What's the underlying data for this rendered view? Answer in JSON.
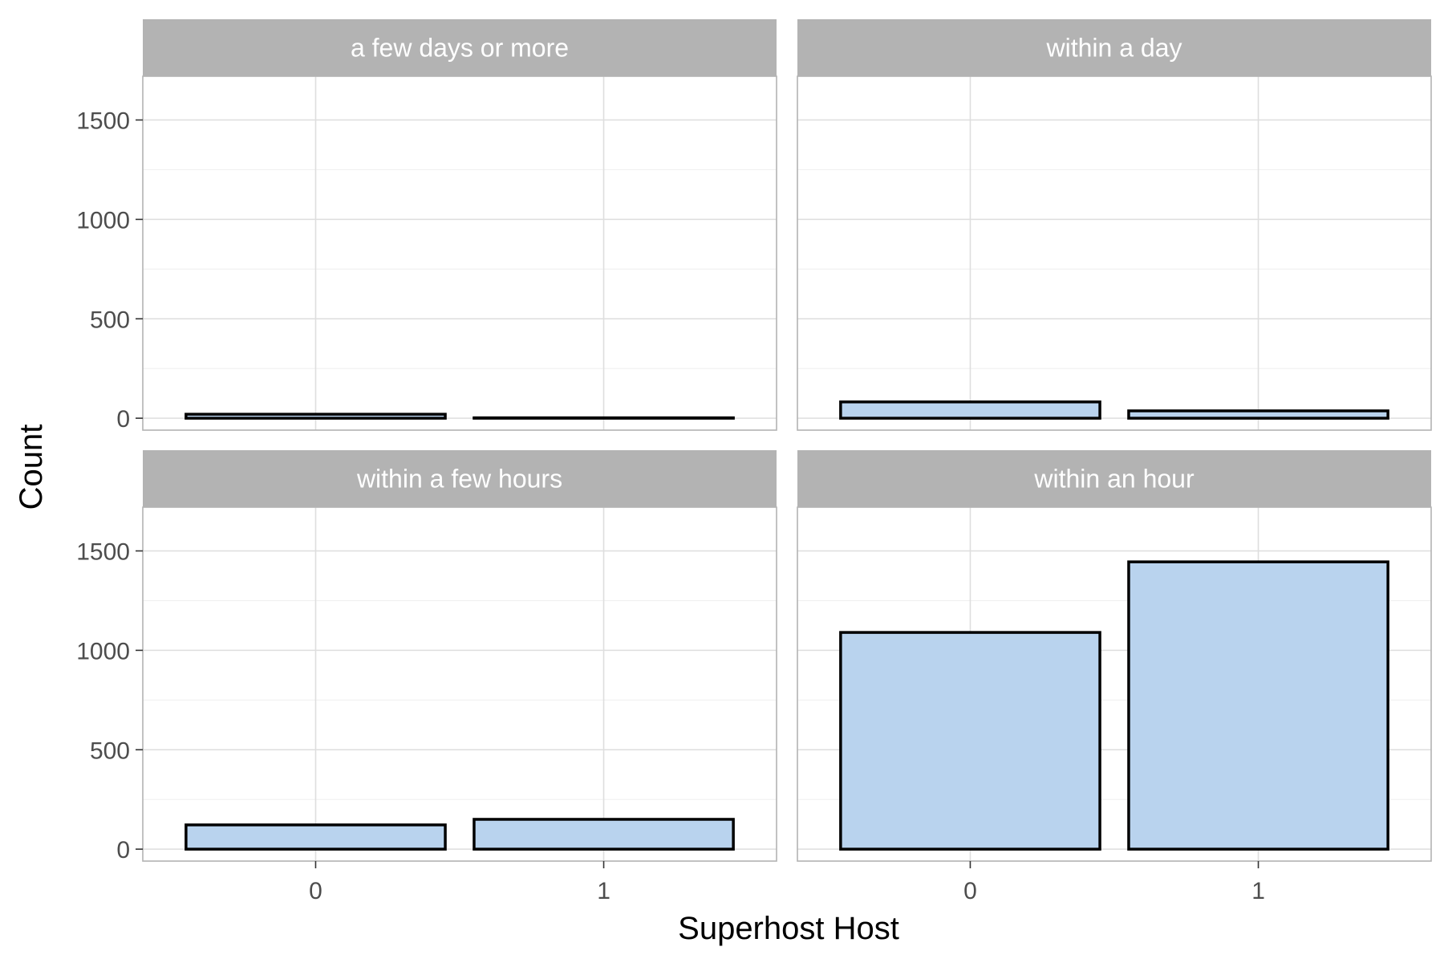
{
  "chart_data": {
    "type": "bar",
    "xlabel": "Superhost Host",
    "ylabel": "Count",
    "ylim": [
      -60,
      1720
    ],
    "y_ticks": [
      0,
      500,
      1000,
      1500
    ],
    "categories": [
      "0",
      "1"
    ],
    "grid": true,
    "bar_fill": "#b9d3ee",
    "bar_stroke": "#000000",
    "strip_fill": "#b3b3b3",
    "facets": [
      {
        "label": "a few days or more",
        "values": [
          20,
          2
        ]
      },
      {
        "label": "within a day",
        "values": [
          82,
          37
        ]
      },
      {
        "label": "within a few hours",
        "values": [
          122,
          150
        ]
      },
      {
        "label": "within an hour",
        "values": [
          1090,
          1445
        ]
      }
    ]
  }
}
